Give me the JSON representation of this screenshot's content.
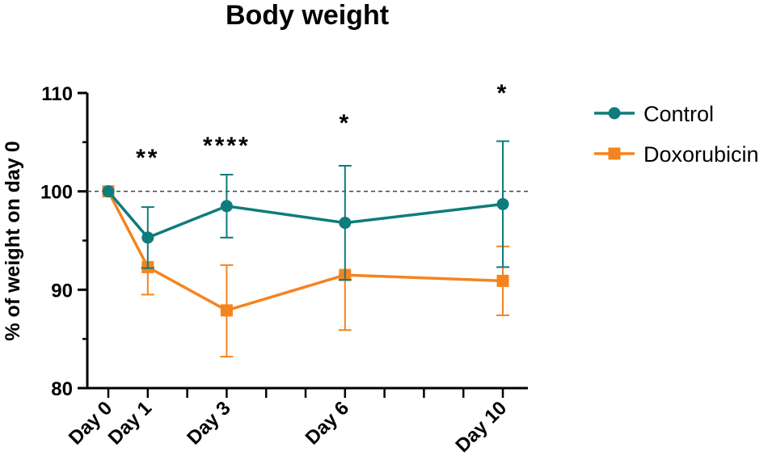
{
  "chart_data": {
    "type": "line",
    "title": "Body weight",
    "ylabel": "% of weight on day 0",
    "xlabel": "",
    "ylim": [
      80,
      110
    ],
    "yticks": [
      80,
      90,
      100,
      110
    ],
    "categories": [
      "Day 0",
      "Day 1",
      "Day 3",
      "Day 6",
      "Day 10"
    ],
    "x": [
      0,
      1,
      3,
      6,
      10
    ],
    "reference_line": 100,
    "series": [
      {
        "name": "Control",
        "color": "#0E7C7B",
        "marker": "circle",
        "values": [
          100,
          95.3,
          98.5,
          96.8,
          98.7
        ],
        "err_high": [
          100,
          98.4,
          101.7,
          102.6,
          105.1
        ],
        "err_low": [
          100,
          92.2,
          95.3,
          91.0,
          92.3
        ]
      },
      {
        "name": "Doxorubicin",
        "color": "#F5841F",
        "marker": "square",
        "values": [
          100,
          92.3,
          87.9,
          91.5,
          90.9
        ],
        "err_high": [
          100,
          92.3,
          92.5,
          91.5,
          94.4
        ],
        "err_low": [
          100,
          89.5,
          83.2,
          85.9,
          87.4
        ]
      }
    ],
    "annotations": [
      {
        "x": 1,
        "text": "**"
      },
      {
        "x": 3,
        "text": "****"
      },
      {
        "x": 6,
        "text": "*"
      },
      {
        "x": 10,
        "text": "*"
      }
    ],
    "legend_position": "right"
  }
}
